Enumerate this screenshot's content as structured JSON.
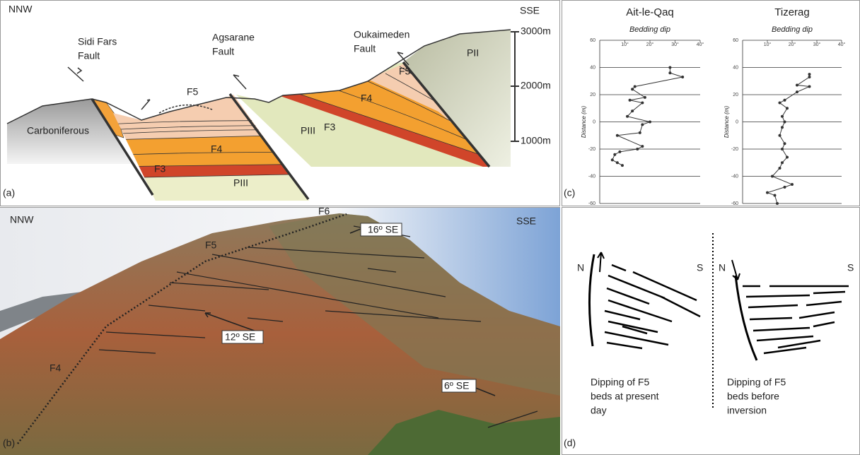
{
  "panel_a": {
    "left_dir": "NNW",
    "right_dir": "SSE",
    "faults": [
      "Sidi Fars",
      "Fault",
      "Agsarane",
      "Fault",
      "Oukaimeden",
      "Fault"
    ],
    "scale": [
      "3000m",
      "2000m",
      "1000m"
    ],
    "units": [
      "Carboniferous",
      "F5",
      "F4",
      "F3",
      "PIII",
      "PIII",
      "F3",
      "F4",
      "F5",
      "PII"
    ],
    "tag": "(a)"
  },
  "panel_b": {
    "left_dir": "NNW",
    "right_dir": "SSE",
    "labels": [
      "F6",
      "16º SE",
      "F5",
      "12º SE",
      "F4",
      "6º SE"
    ],
    "tag": "(b)"
  },
  "panel_c_tag": "(c)",
  "chart_data": [
    {
      "type": "line",
      "title": "Ait-le-Qaq",
      "subtitle": "Bedding dip",
      "y_label": "Distance (m)",
      "x": [
        28,
        28,
        33,
        14,
        13,
        18,
        12,
        17,
        13,
        11,
        20,
        17,
        16,
        7,
        17,
        15,
        8,
        6,
        5,
        7,
        9
      ],
      "series": [
        {
          "color": "#333333",
          "values": [
            40,
            36,
            33,
            26,
            24,
            18,
            16,
            14,
            8,
            4,
            0,
            -2,
            -8,
            -10,
            -18,
            -20,
            -22,
            -24,
            -28,
            -30,
            -32
          ]
        }
      ],
      "xlim": [
        0,
        40
      ],
      "xticks": [
        {
          "value": 10,
          "label": "10°"
        },
        {
          "value": 20,
          "label": "20°"
        },
        {
          "value": 30,
          "label": "30°"
        },
        {
          "value": 40,
          "label": "40°"
        }
      ],
      "ylim": [
        -60,
        60
      ],
      "yticks": [
        -60,
        -40,
        -20,
        0,
        20,
        40,
        60
      ],
      "grid": true
    },
    {
      "type": "line",
      "title": "Tizerag",
      "subtitle": "Bedding dip",
      "y_label": "Distance (m)",
      "x": [
        27,
        27,
        22,
        27,
        22,
        17,
        15,
        18,
        16,
        17,
        16,
        15,
        17,
        16,
        18,
        16,
        15,
        12,
        20,
        17,
        10,
        13,
        14
      ],
      "series": [
        {
          "color": "#333333",
          "values": [
            35,
            33,
            27,
            26,
            22,
            16,
            14,
            10,
            4,
            0,
            -4,
            -10,
            -16,
            -20,
            -26,
            -30,
            -34,
            -40,
            -46,
            -48,
            -52,
            -54,
            -60
          ]
        }
      ],
      "xlim": [
        0,
        40
      ],
      "xticks": [
        {
          "value": 10,
          "label": "10°"
        },
        {
          "value": 20,
          "label": "20°"
        },
        {
          "value": 30,
          "label": "30°"
        },
        {
          "value": 40,
          "label": "40°"
        }
      ],
      "ylim": [
        -60,
        60
      ],
      "yticks": [
        -60,
        -40,
        -20,
        0,
        20,
        40,
        60
      ],
      "grid": true
    }
  ],
  "panel_d": {
    "n1": "N",
    "s1": "S",
    "n2": "N",
    "s2": "S",
    "caption_left": [
      "Dipping of F5",
      "beds at present",
      "day"
    ],
    "caption_right": [
      "Dipping of F5",
      "beds before",
      "inversion"
    ],
    "tag": "(d)"
  }
}
